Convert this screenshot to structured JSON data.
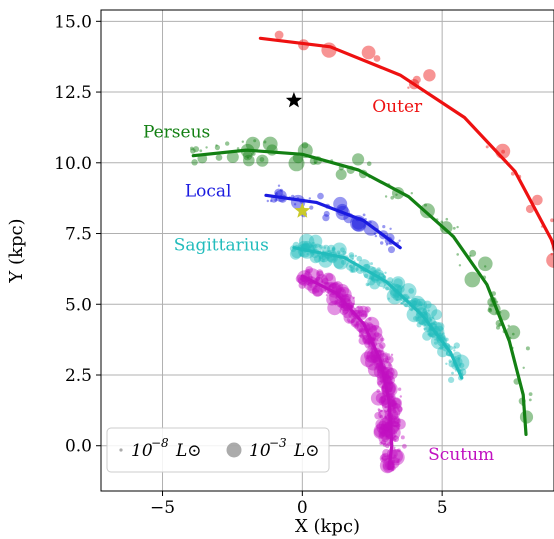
{
  "chart_data": {
    "type": "scatter",
    "xlabel": "X (kpc)",
    "ylabel": "Y (kpc)",
    "xlim": [
      -7.2,
      9.0
    ],
    "ylim": [
      -1.6,
      15.4
    ],
    "xticks": [
      {
        "v": -5,
        "label": "−5"
      },
      {
        "v": 0,
        "label": "0"
      },
      {
        "v": 5,
        "label": "5"
      }
    ],
    "yticks": [
      {
        "v": 0.0,
        "label": "0.0"
      },
      {
        "v": 2.5,
        "label": "2.5"
      },
      {
        "v": 5.0,
        "label": "5.0"
      },
      {
        "v": 7.5,
        "label": "7.5"
      },
      {
        "v": 10.0,
        "label": "10.0"
      },
      {
        "v": 12.5,
        "label": "12.5"
      },
      {
        "v": 15.0,
        "label": "15.0"
      }
    ],
    "grid": true,
    "legend": {
      "placement": "lower-left",
      "entries": [
        {
          "base": "10",
          "exp": "−8",
          "unit": "L⊙",
          "size": "small"
        },
        {
          "base": "10",
          "exp": "−3",
          "unit": "L⊙",
          "size": "large"
        }
      ]
    },
    "markers": [
      {
        "name": "black-star",
        "x": -0.3,
        "y": 12.2,
        "color": "#000000"
      },
      {
        "name": "sun-star",
        "x": 0.0,
        "y": 8.3,
        "color": "#c9c92a"
      }
    ],
    "arms": [
      {
        "name": "Outer",
        "color": "#ee1111",
        "label_at": [
          2.5,
          11.8
        ],
        "point_seed": 11,
        "point_count": 24,
        "curve": [
          [
            -1.5,
            14.4
          ],
          [
            1.0,
            14.1
          ],
          [
            3.5,
            13.1
          ],
          [
            5.8,
            11.6
          ],
          [
            7.6,
            9.7
          ],
          [
            8.9,
            7.3
          ],
          [
            9.5,
            5.6
          ]
        ]
      },
      {
        "name": "Perseus",
        "color": "#138013",
        "label_at": [
          -5.7,
          10.9
        ],
        "point_seed": 7,
        "point_count": 95,
        "curve": [
          [
            -3.9,
            10.25
          ],
          [
            -2.0,
            10.45
          ],
          [
            0.0,
            10.3
          ],
          [
            2.0,
            9.75
          ],
          [
            3.8,
            8.8
          ],
          [
            5.4,
            7.4
          ],
          [
            6.6,
            5.7
          ],
          [
            7.4,
            3.7
          ],
          [
            7.9,
            1.8
          ],
          [
            8.0,
            0.4
          ]
        ]
      },
      {
        "name": "Local",
        "color": "#1a1ae0",
        "label_at": [
          -4.2,
          8.8
        ],
        "point_seed": 3,
        "point_count": 50,
        "curve": [
          [
            -1.3,
            8.85
          ],
          [
            0.5,
            8.6
          ],
          [
            2.2,
            7.95
          ],
          [
            3.5,
            7.0
          ]
        ]
      },
      {
        "name": "Sagittarius",
        "color": "#22bcbc",
        "label_at": [
          -4.6,
          6.9
        ],
        "point_seed": 5,
        "point_count": 260,
        "curve": [
          [
            -0.3,
            7.0
          ],
          [
            1.5,
            6.65
          ],
          [
            3.0,
            5.8
          ],
          [
            4.3,
            4.6
          ],
          [
            5.3,
            3.3
          ],
          [
            5.7,
            2.4
          ]
        ]
      },
      {
        "name": "Scutum",
        "color": "#c010c0",
        "label_at": [
          4.5,
          -0.5
        ],
        "point_seed": 9,
        "point_count": 430,
        "curve": [
          [
            0.0,
            6.0
          ],
          [
            1.2,
            5.4
          ],
          [
            2.2,
            4.3
          ],
          [
            2.8,
            3.0
          ],
          [
            3.1,
            1.6
          ],
          [
            3.2,
            0.0
          ],
          [
            3.1,
            -0.8
          ]
        ]
      }
    ]
  }
}
